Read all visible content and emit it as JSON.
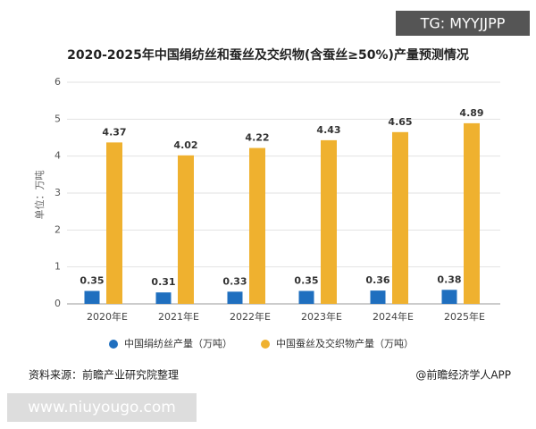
{
  "header": {
    "badge": "TG: MYYJJPP"
  },
  "chart_data": {
    "type": "bar",
    "title": "2020-2025年中国绢纺丝和蚕丝及交织物(含蚕丝≥50%)产量预测情况",
    "y_label": "单位：万吨",
    "categories": [
      "2020年E",
      "2021年E",
      "2022年E",
      "2023年E",
      "2024年E",
      "2025年E"
    ],
    "series": [
      {
        "name": "中国绢纺丝产量（万吨）",
        "color": "#1f6fbf",
        "values": [
          0.35,
          0.31,
          0.33,
          0.35,
          0.36,
          0.38
        ]
      },
      {
        "name": "中国蚕丝及交织物产量（万吨）",
        "color": "#efb12f",
        "values": [
          4.37,
          4.02,
          4.22,
          4.43,
          4.65,
          4.89
        ]
      }
    ],
    "ylim": [
      0,
      6
    ],
    "yticks": [
      0,
      1,
      2,
      3,
      4,
      5,
      6
    ],
    "grid": true,
    "source": "资料来源：前瞻产业研究院整理",
    "credit": "@前瞻经济学人APP"
  },
  "footer": {
    "url": "www.niuyougo.com"
  }
}
